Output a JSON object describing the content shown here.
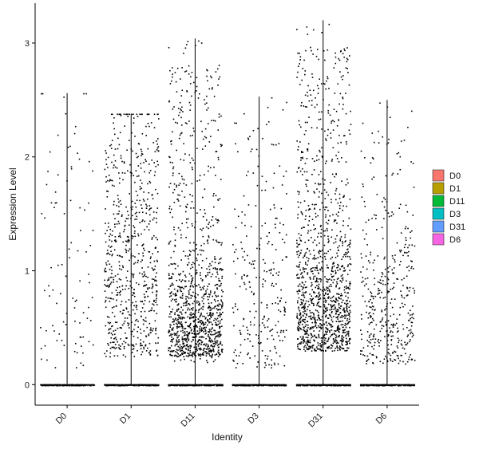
{
  "chart_data": {
    "type": "scatter",
    "subtype": "violin-jitter",
    "title": "",
    "xlabel": "Identity",
    "ylabel": "Expression Level",
    "categories": [
      "D0",
      "D1",
      "D11",
      "D3",
      "D31",
      "D6"
    ],
    "ylim": [
      -0.18,
      3.35
    ],
    "yticks": [
      0,
      1,
      2,
      3
    ],
    "ytick_labels": [
      "0",
      "1",
      "2",
      "3"
    ],
    "grid": false,
    "legend": {
      "placement": "right",
      "entries": [
        {
          "name": "D0",
          "color": "#F8766D"
        },
        {
          "name": "D1",
          "color": "#B79F00"
        },
        {
          "name": "D11",
          "color": "#00BA38"
        },
        {
          "name": "D3",
          "color": "#00BFC4"
        },
        {
          "name": "D31",
          "color": "#619CFF"
        },
        {
          "name": "D6",
          "color": "#F564E3"
        }
      ]
    },
    "series": [
      {
        "name": "D0",
        "max": 2.56,
        "nonzero_points": 95,
        "nonzero_range": [
          0.15,
          2.56
        ],
        "dense_range": [
          0.15,
          2.3
        ]
      },
      {
        "name": "D1",
        "max": 2.38,
        "nonzero_points": 700,
        "nonzero_range": [
          0.25,
          2.38
        ],
        "dense_range": [
          0.25,
          2.3
        ]
      },
      {
        "name": "D11",
        "max": 3.04,
        "nonzero_points": 1150,
        "nonzero_range": [
          0.2,
          3.04
        ],
        "dense_range": [
          0.25,
          1.0
        ]
      },
      {
        "name": "D3",
        "max": 2.53,
        "nonzero_points": 260,
        "nonzero_range": [
          0.13,
          2.53
        ],
        "dense_range": [
          0.15,
          1.5
        ]
      },
      {
        "name": "D31",
        "max": 3.2,
        "nonzero_points": 1250,
        "nonzero_range": [
          0.3,
          3.2
        ],
        "dense_range": [
          0.3,
          1.3
        ]
      },
      {
        "name": "D6",
        "max": 2.5,
        "nonzero_points": 420,
        "nonzero_range": [
          0.18,
          2.5
        ],
        "dense_range": [
          0.2,
          1.2
        ]
      }
    ],
    "point_color": "#000000"
  }
}
